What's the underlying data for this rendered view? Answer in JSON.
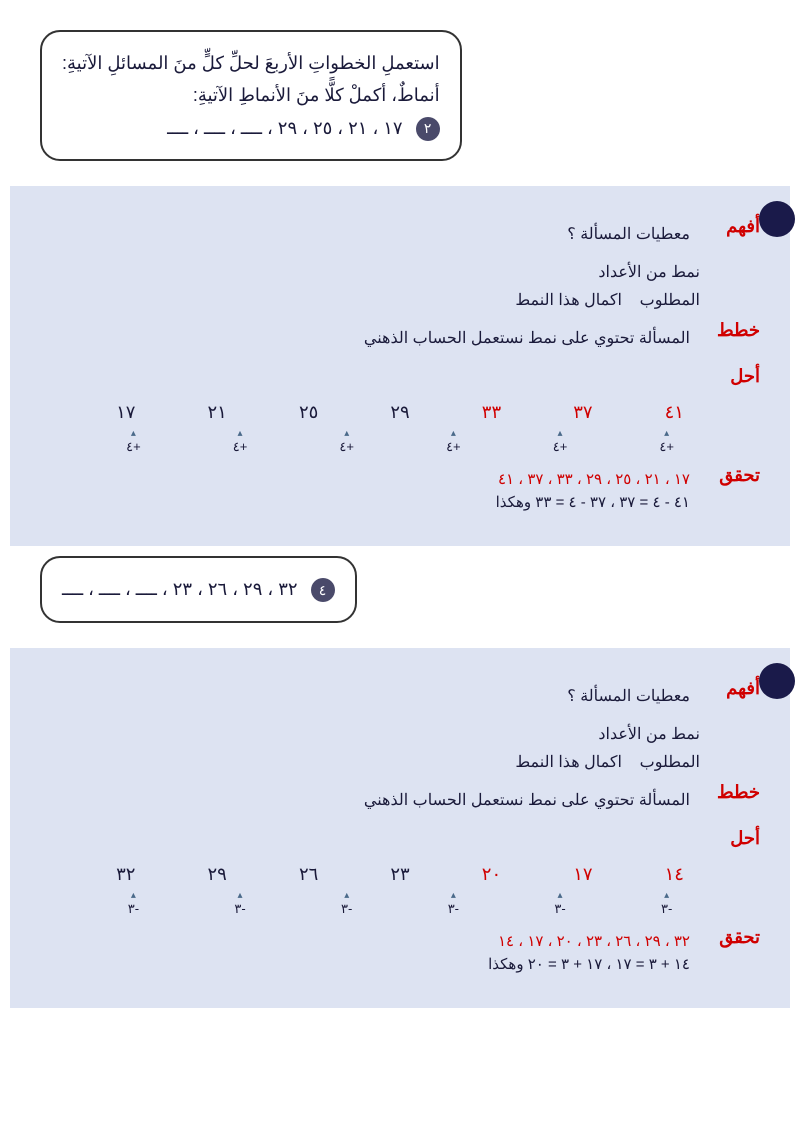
{
  "intro": {
    "line1": "استعملِ الخطواتِ الأربعَ لحلِّ كلٍّ منَ المسائلِ الآتيةِ:",
    "line2": "أنماطٌ، أكملْ كلًّا منَ الأنماطِ الآتيةِ:"
  },
  "q1": {
    "number": "٢",
    "pattern": "١٧ ، ٢١ ، ٢٥ ، ٢٩ ، ــــ ، ــــ ، ــــ"
  },
  "sol1": {
    "understand": "أفهم",
    "given_label": "معطيات المسألة ؟",
    "given": "نمط من الأعداد",
    "required_label": "المطلوب",
    "required": "اكمال هذا النمط",
    "plan": "خطط",
    "plan_text": "المسألة تحتوي على نمط نستعمل الحساب الذهني",
    "solve": "أحل",
    "numbers": [
      "١٧",
      "٢١",
      "٢٥",
      "٢٩",
      "٣٣",
      "٣٧",
      "٤١"
    ],
    "new_idx": [
      4,
      5,
      6
    ],
    "ops": [
      "+٤",
      "+٤",
      "+٤",
      "+٤",
      "+٤",
      "+٤"
    ],
    "verify": "تحقق",
    "result": "١٧ ، ٢١ ، ٢٥ ، ٢٩ ، ٣٣ ، ٣٧ ، ٤١",
    "check": "٤١ - ٤ = ٣٧ ، ٣٧ - ٤ = ٣٣ وهكذا"
  },
  "q2": {
    "number": "٤",
    "pattern": "٣٢ ، ٢٩ ، ٢٦ ، ٢٣ ، ــــ ، ــــ ، ــــ"
  },
  "sol2": {
    "understand": "أفهم",
    "given_label": "معطيات المسألة ؟",
    "given": "نمط من الأعداد",
    "required_label": "المطلوب",
    "required": "اكمال هذا النمط",
    "plan": "خطط",
    "plan_text": "المسألة تحتوي على نمط نستعمل الحساب الذهني",
    "solve": "أحل",
    "numbers": [
      "٣٢",
      "٢٩",
      "٢٦",
      "٢٣",
      "٢٠",
      "١٧",
      "١٤"
    ],
    "new_idx": [
      4,
      5,
      6
    ],
    "ops": [
      "-٣",
      "-٣",
      "-٣",
      "-٣",
      "-٣",
      "-٣"
    ],
    "verify": "تحقق",
    "result": "٣٢ ، ٢٩ ، ٢٦ ، ٢٣ ، ٢٠ ، ١٧ ، ١٤",
    "check": "١٤ + ٣ = ١٧ ، ١٧ + ٣ = ٢٠ وهكذا"
  },
  "colors": {
    "red": "#d00000",
    "panel_bg": "#dde3f2",
    "badge": "#1a1a4a",
    "text": "#1a1a3a"
  }
}
